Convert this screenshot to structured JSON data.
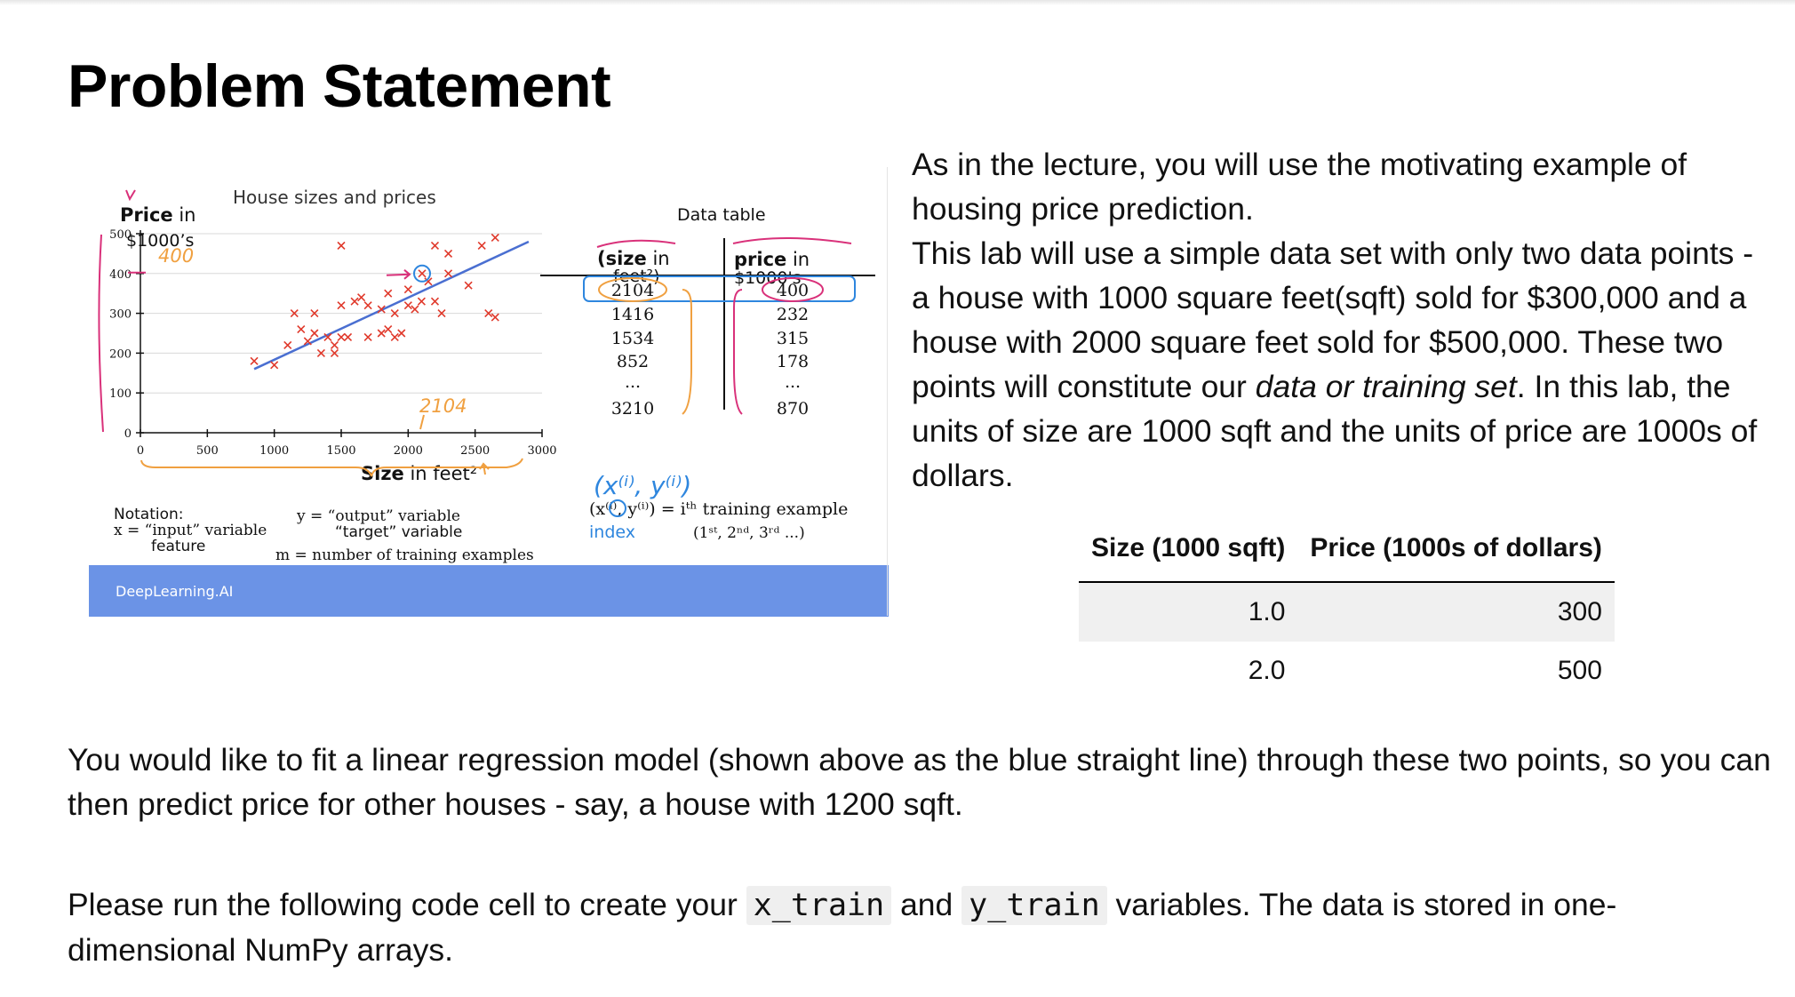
{
  "page": {
    "title": "Problem Statement"
  },
  "slide": {
    "chart_title": "House sizes and prices",
    "y_label_bold": "Price",
    "y_label_rest": " in",
    "y_label_line2": "$1000’s",
    "x_label_bold": "Size",
    "x_label_rest": " in feet²",
    "x_ticks": [
      "0",
      "500",
      "1000",
      "1500",
      "2000",
      "2500",
      "3000"
    ],
    "y_ticks": [
      "0",
      "100",
      "200",
      "300",
      "400",
      "500"
    ],
    "annotations": {
      "price_marker": "400",
      "size_marker": "2104",
      "pair_handwritten": "(x⁽ⁱ⁾, y⁽ⁱ⁾)",
      "index_label": "index"
    },
    "data_table": {
      "title": "Data table",
      "col1_bold": "(size",
      "col1_rest": " in",
      "col1_line2": "feet²)",
      "col2_bold": "price",
      "col2_rest": " in",
      "col2_line2": "$1000's",
      "sizes": [
        "2104",
        "1416",
        "1534",
        "852",
        "...",
        "3210"
      ],
      "prices": [
        "400",
        "232",
        "315",
        "178",
        "...",
        "870"
      ]
    },
    "notation": {
      "header": "Notation:",
      "x_line": "x = “input” variable",
      "x_line2": "feature",
      "y_line": "y = “output” variable",
      "y_line2": "“target” variable",
      "m_line": "m = number of training examples",
      "pair_line": "(x⁽ⁱ⁾, y⁽ⁱ⁾) = iᵗʰ training example",
      "ordinal_line": "(1ˢᵗ, 2ⁿᵈ, 3ʳᵈ ...)"
    },
    "footer_logo": "DeepLearning.AI",
    "colors": {
      "footer": "#6b93e6",
      "points": "#e0392b",
      "line": "#4a6fd1",
      "ink_orange": "#f0a040",
      "ink_pink": "#d9317a",
      "ink_blue": "#2e86de"
    }
  },
  "intro": {
    "p1_line": "As in the lecture, you will use the motivating example of housing price prediction.",
    "p2_pre": "This lab will use a simple data set with only two data points - a house with 1000 square feet(sqft) sold for $300,000 and a house with 2000 square feet sold for $500,000. These two points will constitute our ",
    "p2_em": "data or training set",
    "p2_post": ". In this lab, the units of size are 1000 sqft and the units of price are 1000s of dollars."
  },
  "table": {
    "headers": [
      "Size (1000 sqft)",
      "Price (1000s of dollars)"
    ],
    "rows": [
      [
        "1.0",
        "300"
      ],
      [
        "2.0",
        "500"
      ]
    ]
  },
  "paragraphs": {
    "fit": "You would like to fit a linear regression model (shown above as the blue straight line) through these two points, so you can then predict price for other houses - say, a house with 1200 sqft.",
    "run_pre": "Please run the following code cell to create your ",
    "run_code1": "x_train",
    "run_mid": " and ",
    "run_code2": "y_train",
    "run_post": " variables. The data is stored in one-dimensional NumPy arrays."
  },
  "chart_data": {
    "type": "scatter",
    "title": "House sizes and prices",
    "xlabel": "Size in feet²",
    "ylabel": "Price in $1000’s",
    "xlim": [
      0,
      3000
    ],
    "ylim": [
      0,
      500
    ],
    "x_ticks": [
      0,
      500,
      1000,
      1500,
      2000,
      2500,
      3000
    ],
    "y_ticks": [
      0,
      100,
      200,
      300,
      400,
      500
    ],
    "grid": true,
    "points": [
      [
        850,
        180
      ],
      [
        1000,
        170
      ],
      [
        1100,
        220
      ],
      [
        1150,
        300
      ],
      [
        1200,
        260
      ],
      [
        1250,
        230
      ],
      [
        1300,
        250
      ],
      [
        1300,
        300
      ],
      [
        1350,
        200
      ],
      [
        1400,
        240
      ],
      [
        1450,
        220
      ],
      [
        1450,
        200
      ],
      [
        1500,
        240
      ],
      [
        1550,
        240
      ],
      [
        1500,
        320
      ],
      [
        1600,
        330
      ],
      [
        1650,
        340
      ],
      [
        1700,
        320
      ],
      [
        1700,
        240
      ],
      [
        1800,
        250
      ],
      [
        1800,
        310
      ],
      [
        1850,
        260
      ],
      [
        1850,
        350
      ],
      [
        1900,
        300
      ],
      [
        1900,
        240
      ],
      [
        1950,
        250
      ],
      [
        2000,
        320
      ],
      [
        2000,
        360
      ],
      [
        2050,
        310
      ],
      [
        2100,
        330
      ],
      [
        2150,
        380
      ],
      [
        2200,
        330
      ],
      [
        2250,
        300
      ],
      [
        2300,
        400
      ],
      [
        1500,
        470
      ],
      [
        2200,
        470
      ],
      [
        2300,
        450
      ],
      [
        2550,
        470
      ],
      [
        2650,
        490
      ],
      [
        2600,
        300
      ],
      [
        2650,
        290
      ],
      [
        2450,
        370
      ]
    ],
    "regression_line": {
      "x": [
        850,
        2900
      ],
      "y": [
        160,
        480
      ]
    },
    "highlighted_point": [
      2104,
      400
    ]
  }
}
